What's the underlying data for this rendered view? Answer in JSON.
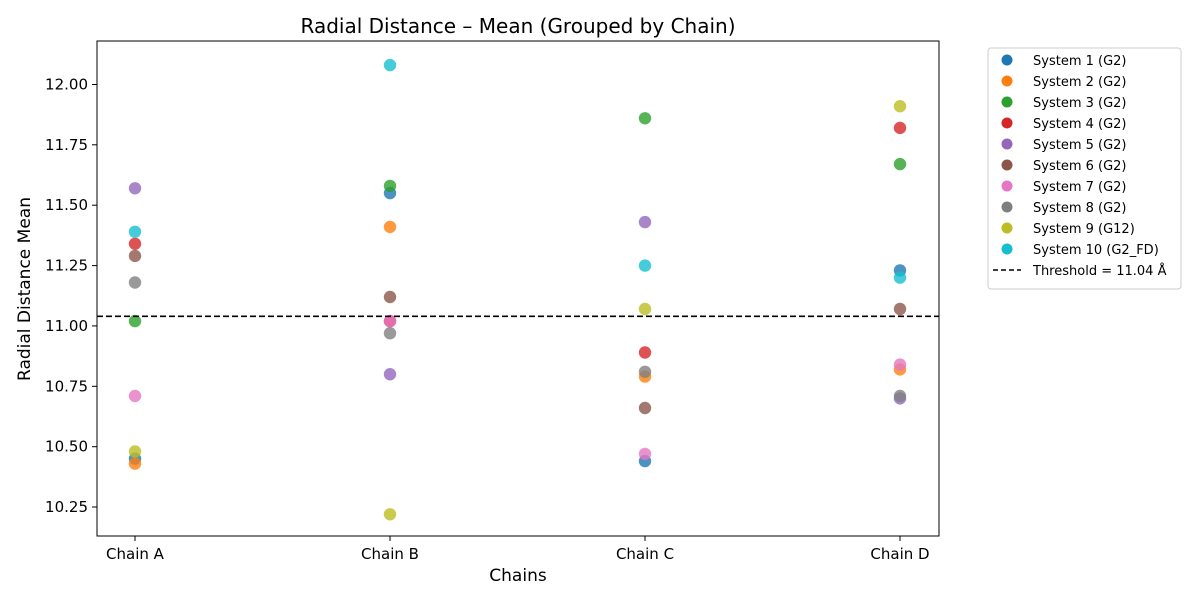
{
  "chart_data": {
    "type": "scatter",
    "title": "Radial Distance – Mean (Grouped by Chain)",
    "xlabel": "Chains",
    "ylabel": "Radial Distance Mean",
    "categories": [
      "Chain A",
      "Chain B",
      "Chain C",
      "Chain D"
    ],
    "ylim": [
      10.13,
      12.18
    ],
    "yticks": [
      10.25,
      10.5,
      10.75,
      11.0,
      11.25,
      11.5,
      11.75,
      12.0
    ],
    "ytick_labels": [
      "10.25",
      "10.50",
      "10.75",
      "11.00",
      "11.25",
      "11.50",
      "11.75",
      "12.00"
    ],
    "grid": false,
    "legend_position": "outside right, top",
    "threshold": {
      "value": 11.04,
      "label": "Threshold = 11.04 Å",
      "style": "dashed",
      "color": "#000000"
    },
    "series": [
      {
        "name": "System 1 (G2)",
        "color": "#1f77b4",
        "values": [
          10.45,
          11.55,
          10.44,
          11.23
        ]
      },
      {
        "name": "System 2 (G2)",
        "color": "#ff7f0e",
        "values": [
          10.43,
          11.41,
          10.79,
          10.82
        ]
      },
      {
        "name": "System 3 (G2)",
        "color": "#2ca02c",
        "values": [
          11.02,
          11.58,
          11.86,
          11.67
        ]
      },
      {
        "name": "System 4 (G2)",
        "color": "#d62728",
        "values": [
          11.34,
          11.02,
          10.89,
          11.82
        ]
      },
      {
        "name": "System 5 (G2)",
        "color": "#9467bd",
        "values": [
          11.57,
          10.8,
          11.43,
          10.7
        ]
      },
      {
        "name": "System 6 (G2)",
        "color": "#8c564b",
        "values": [
          11.29,
          11.12,
          10.66,
          11.07
        ]
      },
      {
        "name": "System 7 (G2)",
        "color": "#e377c2",
        "values": [
          10.71,
          11.02,
          10.47,
          10.84
        ]
      },
      {
        "name": "System 8 (G2)",
        "color": "#7f7f7f",
        "values": [
          11.18,
          10.97,
          10.81,
          10.71
        ]
      },
      {
        "name": "System 9 (G12)",
        "color": "#bcbd22",
        "values": [
          10.48,
          10.22,
          11.07,
          11.91
        ]
      },
      {
        "name": "System 10 (G2_FD)",
        "color": "#17becf",
        "values": [
          11.39,
          12.08,
          11.25,
          11.2
        ]
      }
    ]
  }
}
